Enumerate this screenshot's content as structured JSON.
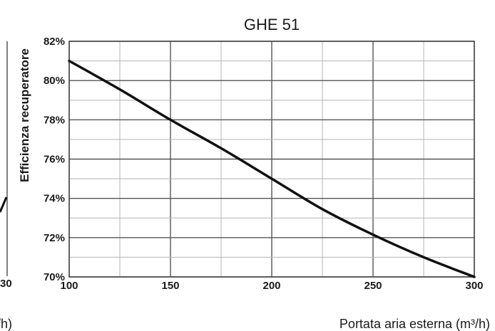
{
  "chart_data": {
    "type": "line",
    "title": "GHE 51",
    "xlabel": "Portata aria esterna (m³/h)",
    "ylabel": "Efficienza recuperatore",
    "xlim": [
      100,
      300
    ],
    "ylim": [
      70,
      82
    ],
    "x_ticks": [
      "100",
      "150",
      "200",
      "250",
      "300"
    ],
    "y_ticks": [
      "70%",
      "72%",
      "74%",
      "76%",
      "78%",
      "80%",
      "82%"
    ],
    "grid": true,
    "series": [
      {
        "x": [
          100,
          125,
          150,
          175,
          200,
          225,
          250,
          275,
          300
        ],
        "values": [
          81.0,
          79.55,
          78.0,
          76.55,
          75.0,
          73.45,
          72.15,
          71.0,
          70.0
        ]
      }
    ],
    "partial_neighbor_labels": [
      "30",
      "/h)"
    ]
  }
}
